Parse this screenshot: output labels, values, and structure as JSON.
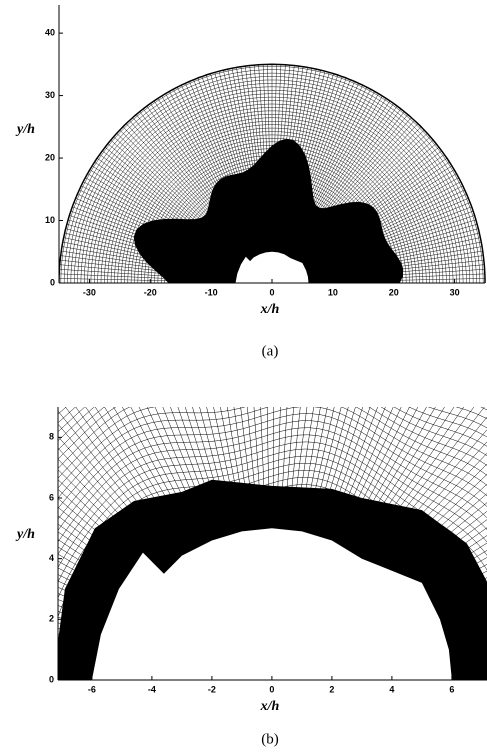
{
  "panels": [
    {
      "xlabel": "x/h",
      "ylabel": "y/h",
      "caption": "(a)",
      "xlim": [
        -35,
        35
      ],
      "ylim": [
        0,
        44.5
      ],
      "xticks": [
        -30,
        -20,
        -10,
        0,
        10,
        20,
        30
      ],
      "yticks": [
        0,
        10,
        20,
        30,
        40
      ]
    },
    {
      "xlabel": "x/h",
      "ylabel": "y/h",
      "caption": "(b)",
      "xlim": [
        -7.13,
        7.17
      ],
      "ylim": [
        0,
        9
      ],
      "xticks": [
        -6,
        -4,
        -2,
        0,
        2,
        4,
        6
      ],
      "yticks": [
        0,
        2,
        4,
        6,
        8
      ]
    }
  ]
}
